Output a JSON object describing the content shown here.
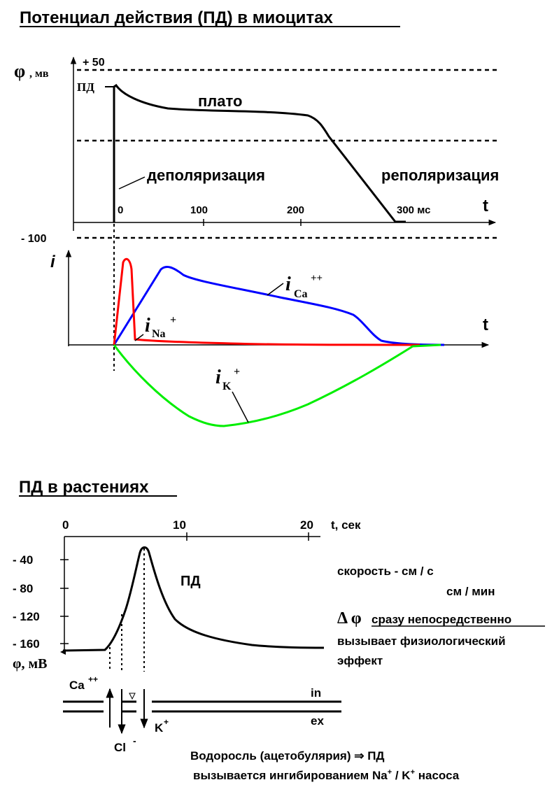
{
  "title_top": "Потенциал действия (ПД) в миоцитах",
  "title_bottom": "ПД в растениях",
  "colors": {
    "na": "#ff0000",
    "ca": "#0000ff",
    "k": "#00ee00",
    "axes": "#000000"
  },
  "myocyte": {
    "phi_symbol": "φ",
    "phi_unit": ", мв",
    "plus50": "+ 50",
    "minus100": "- 100",
    "pd_label": "ПД",
    "plateau": "плато",
    "depol": "деполяризация",
    "repol": "реполяризация",
    "t_label": "t",
    "ticks": [
      "0",
      "100",
      "200",
      "300 мс"
    ],
    "i_label": "i",
    "i_t_label": "t",
    "ica_i": "i",
    "ica_sub": "Ca",
    "ica_sup": "++",
    "ina_i": "i",
    "ina_sub": "Na",
    "ina_sup": "+",
    "ik_i": "i",
    "ik_sub": "K",
    "ik_sup": "+"
  },
  "plant": {
    "x_ticks": [
      "0",
      "10",
      "20"
    ],
    "x_label": "t, сек",
    "y_ticks": [
      "- 40",
      "- 80",
      "- 120",
      "- 160"
    ],
    "y_label": "φ, мВ",
    "pd": "ПД",
    "speed1": "скорость - см / с",
    "speed2": "см / мин",
    "delta_sym": "Δ φ",
    "delta_underlined": "сразу непосредственно",
    "effect1": "вызывает физиологический",
    "effect2": "эффект",
    "ca": "Ca",
    "ca_sup": "++",
    "cl": "Cl",
    "cl_sup": "-",
    "k": "K",
    "k_sup": "+",
    "in": "in",
    "ex": "ex",
    "algae": "Водоросль (ацетобулярия)  ⇒  ПД",
    "inhib_a": "вызывается ингибированием  Na",
    "inhib_sup1": "+",
    "inhib_b": " / K",
    "inhib_sup2": "+",
    "inhib_c": " насоса"
  }
}
